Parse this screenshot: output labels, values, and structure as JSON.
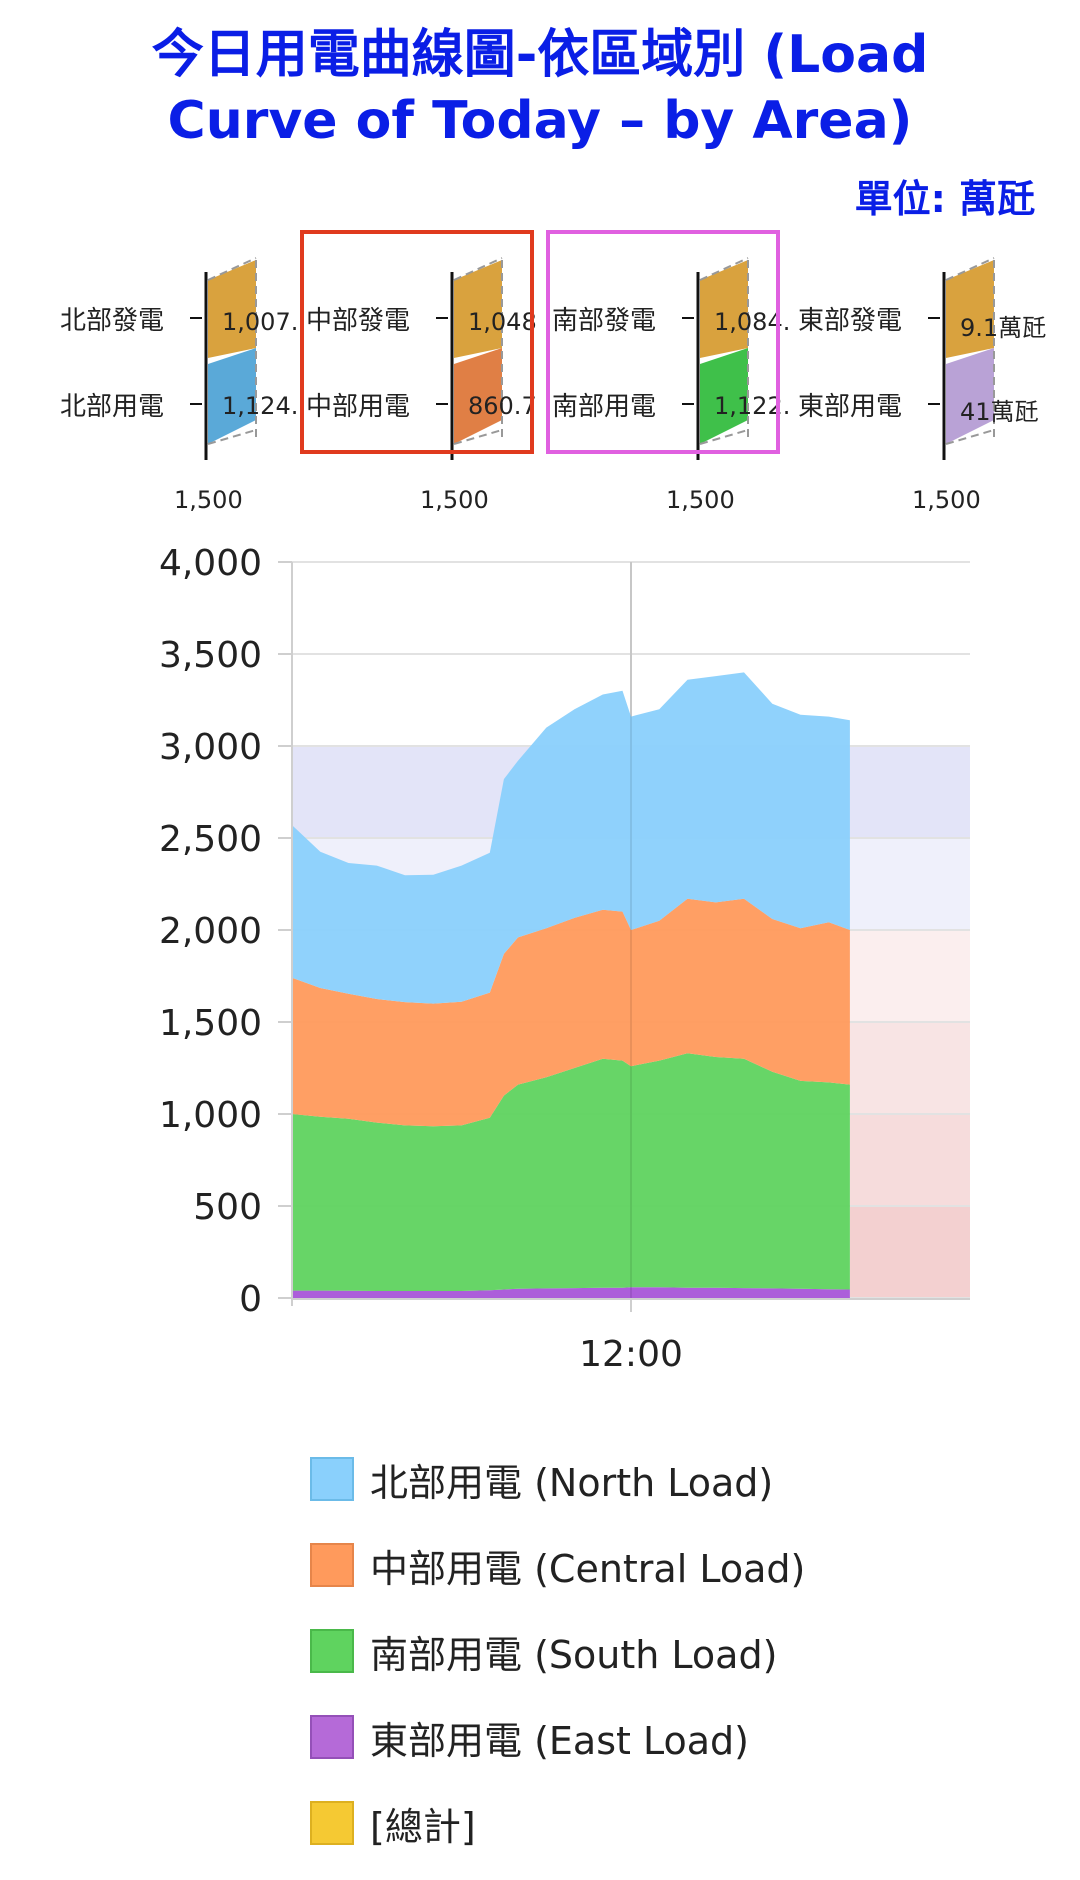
{
  "title_line1": "今日用電曲線圖-依區域別 (Load",
  "title_line2": "Curve of Today – by Area)",
  "unit_label": "單位: 萬瓩",
  "panels": [
    {
      "gen_label": "北部發電",
      "gen_value": "1,007.",
      "load_label": "北部用電",
      "load_value": "1,124.",
      "axis_label": "1,500",
      "gen_color": "#d9a23e",
      "load_color": "#5aa9d8",
      "highlight": null
    },
    {
      "gen_label": "中部發電",
      "gen_value": "1,048",
      "load_label": "中部用電",
      "load_value": "860.7",
      "axis_label": "1,500",
      "gen_color": "#d9a23e",
      "load_color": "#e07f45",
      "highlight": "#e03a1e"
    },
    {
      "gen_label": "南部發電",
      "gen_value": "1,084.",
      "load_label": "南部用電",
      "load_value": "1,122.",
      "axis_label": "1,500",
      "gen_color": "#d9a23e",
      "load_color": "#3fc04a",
      "highlight": "#e060e0"
    },
    {
      "gen_label": "東部發電",
      "gen_value": "9.1萬瓩",
      "load_label": "東部用電",
      "load_value": "41萬瓩",
      "axis_label": "1,500",
      "gen_color": "#d9a23e",
      "load_color": "#b9a2d6",
      "highlight": null
    }
  ],
  "chart_data": {
    "type": "area",
    "stacked": true,
    "x_tick_labels": [
      "12:00"
    ],
    "x_range_hours": [
      0,
      24
    ],
    "ylim": [
      0,
      4000
    ],
    "y_ticks": [
      0,
      500,
      1000,
      1500,
      2000,
      2500,
      3000,
      3500,
      4000
    ],
    "y_tick_labels": [
      "0",
      "500",
      "1,000",
      "1,500",
      "2,000",
      "2,500",
      "3,000",
      "3,500",
      "4,000"
    ],
    "grid": true,
    "legend_position": "bottom",
    "bands": [
      {
        "from": 2500,
        "to": 3000,
        "color": "#e3e4f8"
      },
      {
        "from": 2000,
        "to": 2500,
        "color": "#eff0fb"
      },
      {
        "from": 1500,
        "to": 2000,
        "color": "#fbeeee",
        "start_hour": 19.75
      },
      {
        "from": 1000,
        "to": 1500,
        "color": "#f8e4e4",
        "start_hour": 19.75
      },
      {
        "from": 500,
        "to": 1000,
        "color": "#f6dcdc",
        "start_hour": 19.75
      },
      {
        "from": 0,
        "to": 500,
        "color": "#f3d0d0",
        "start_hour": 19.75
      }
    ],
    "x": [
      0,
      1,
      2,
      3,
      4,
      5,
      6,
      7,
      7.5,
      8,
      9,
      10,
      11,
      11.7,
      12,
      13,
      14,
      15,
      16,
      17,
      18,
      19,
      19.75
    ],
    "series": [
      {
        "name": "東部用電 (East Load)",
        "color": "#a855d8",
        "values": [
          40,
          40,
          39,
          38,
          38,
          38,
          38,
          42,
          46,
          50,
          52,
          54,
          56,
          56,
          58,
          58,
          56,
          56,
          54,
          52,
          50,
          48,
          46
        ]
      },
      {
        "name": "南部用電 (South Load)",
        "color": "#5fd35f",
        "values": [
          960,
          945,
          935,
          915,
          900,
          895,
          900,
          938,
          1054,
          1110,
          1148,
          1196,
          1244,
          1234,
          1202,
          1232,
          1274,
          1254,
          1246,
          1178,
          1130,
          1124,
          1114
        ]
      },
      {
        "name": "中部用電 (Central Load)",
        "color": "#ff9a5c",
        "values": [
          740,
          700,
          680,
          672,
          670,
          667,
          672,
          680,
          770,
          800,
          810,
          816,
          810,
          810,
          740,
          760,
          840,
          840,
          870,
          830,
          830,
          870,
          840
        ]
      },
      {
        "name": "北部用電 (North Load)",
        "color": "#8ad0fc",
        "values": [
          830,
          740,
          710,
          725,
          690,
          700,
          740,
          760,
          950,
          960,
          1090,
          1134,
          1170,
          1200,
          1160,
          1150,
          1190,
          1230,
          1230,
          1170,
          1160,
          1118,
          1140
        ]
      }
    ],
    "legend": [
      {
        "label": "北部用電 (North Load)",
        "color": "#8ad0fc",
        "border": "#6bbbe8"
      },
      {
        "label": "中部用電 (Central Load)",
        "color": "#ff9a5c",
        "border": "#e6854a"
      },
      {
        "label": "南部用電 (South Load)",
        "color": "#5fd35f",
        "border": "#4ab94a"
      },
      {
        "label": "東部用電 (East Load)",
        "color": "#b56ad8",
        "border": "#9450b8"
      },
      {
        "label": "[總計]",
        "color": "#f5c933",
        "border": "#ddb020"
      }
    ]
  }
}
